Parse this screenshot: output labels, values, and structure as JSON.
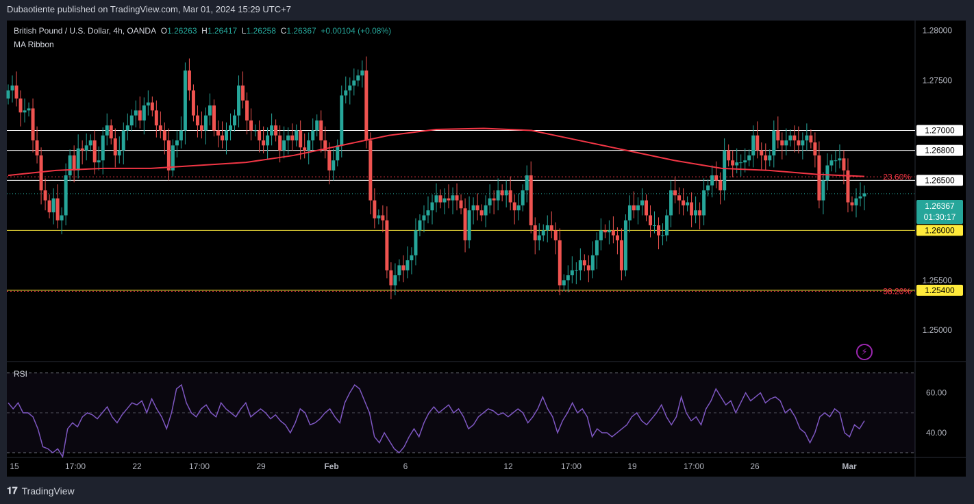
{
  "header": {
    "published": "Dubaotiente published on TradingView.com, Mar 01, 2024 15:29 UTC+7"
  },
  "legend": {
    "symbol": "British Pound / U.S. Dollar, 4h, OANDA",
    "o_label": "O",
    "o": "1.26263",
    "h_label": "H",
    "h": "1.26417",
    "l_label": "L",
    "l": "1.26258",
    "c_label": "C",
    "c": "1.26367",
    "change": "+0.00104 (+0.08%)",
    "indicator": "MA Ribbon"
  },
  "rsi_label": "RSI",
  "footer": {
    "brand": "TradingView"
  },
  "colors": {
    "up": "#26a69a",
    "down": "#ef5350",
    "ma": "#f23645",
    "rsi": "#7e57c2",
    "fib": "#f23645"
  },
  "chart_data": {
    "type": "candlestick",
    "price_axis": [
      "1.28000",
      "1.27500",
      "1.27000",
      "1.26500",
      "1.26000",
      "1.25500",
      "1.25000"
    ],
    "price_range": [
      1.247,
      1.281
    ],
    "time_axis": [
      "15",
      "17:00",
      "22",
      "17:00",
      "29",
      "Feb",
      "6",
      "12",
      "17:00",
      "19",
      "17:00",
      "26",
      "Mar"
    ],
    "horizontal_levels": [
      {
        "price": 1.27,
        "label": "1.27000",
        "style": "white"
      },
      {
        "price": 1.268,
        "label": "1.26800",
        "style": "white"
      },
      {
        "price": 1.265,
        "label": "1.26500",
        "style": "white"
      },
      {
        "price": 1.26,
        "label": "1.26000",
        "style": "yellow"
      },
      {
        "price": 1.254,
        "label": "1.25400",
        "style": "yellow"
      }
    ],
    "fib_levels": [
      {
        "price": 1.26535,
        "label": "23.60%"
      },
      {
        "price": 1.2539,
        "label": "38.20%"
      }
    ],
    "current_price": {
      "value": "1.26367",
      "countdown": "01:30:17"
    },
    "closes": [
      1.274,
      1.2745,
      1.2732,
      1.2718,
      1.272,
      1.2722,
      1.269,
      1.2675,
      1.264,
      1.263,
      1.2618,
      1.2632,
      1.261,
      1.2615,
      1.2655,
      1.2675,
      1.266,
      1.2682,
      1.268,
      1.2685,
      1.269,
      1.2668,
      1.267,
      1.2695,
      1.2705,
      1.2692,
      1.2675,
      1.268,
      1.27,
      1.2705,
      1.2715,
      1.272,
      1.271,
      1.2725,
      1.2728,
      1.272,
      1.2705,
      1.27,
      1.269,
      1.266,
      1.2685,
      1.269,
      1.27,
      1.276,
      1.274,
      1.2715,
      1.2705,
      1.27,
      1.2715,
      1.2725,
      1.27,
      1.2695,
      1.269,
      1.27,
      1.2705,
      1.2715,
      1.2745,
      1.273,
      1.271,
      1.27,
      1.27,
      1.269,
      1.2685,
      1.2695,
      1.2705,
      1.2695,
      1.268,
      1.269,
      1.2695,
      1.269,
      1.27,
      1.2683,
      1.268,
      1.269,
      1.27,
      1.271,
      1.269,
      1.268,
      1.266,
      1.267,
      1.2685,
      1.2735,
      1.274,
      1.2745,
      1.275,
      1.2755,
      1.276,
      1.269,
      1.263,
      1.2612,
      1.2615,
      1.261,
      1.256,
      1.2545,
      1.2555,
      1.2565,
      1.256,
      1.257,
      1.2575,
      1.26,
      1.261,
      1.2615,
      1.262,
      1.2628,
      1.2635,
      1.2628,
      1.2632,
      1.263,
      1.2635,
      1.263,
      1.2622,
      1.259,
      1.262,
      1.2625,
      1.262,
      1.2615,
      1.2625,
      1.2632,
      1.263,
      1.264,
      1.2635,
      1.264,
      1.2628,
      1.262,
      1.2625,
      1.264,
      1.2655,
      1.2605,
      1.259,
      1.2595,
      1.26,
      1.2605,
      1.26,
      1.259,
      1.2545,
      1.255,
      1.2555,
      1.256,
      1.256,
      1.257,
      1.2565,
      1.256,
      1.2575,
      1.259,
      1.26,
      1.2598,
      1.26,
      1.2595,
      1.259,
      1.256,
      1.261,
      1.2625,
      1.262,
      1.2625,
      1.263,
      1.2615,
      1.2605,
      1.2605,
      1.2595,
      1.2595,
      1.2615,
      1.264,
      1.2635,
      1.263,
      1.2625,
      1.2628,
      1.2615,
      1.262,
      1.2615,
      1.264,
      1.2645,
      1.2655,
      1.265,
      1.264,
      1.268,
      1.267,
      1.2665,
      1.2668,
      1.2668,
      1.267,
      1.2675,
      1.2695,
      1.268,
      1.2675,
      1.267,
      1.2675,
      1.27,
      1.269,
      1.2685,
      1.269,
      1.2695,
      1.269,
      1.2685,
      1.269,
      1.2695,
      1.2688,
      1.2675,
      1.263,
      1.265,
      1.2665,
      1.267,
      1.267,
      1.2672,
      1.266,
      1.2628,
      1.2625,
      1.2632,
      1.2634,
      1.2637
    ],
    "ma_line": [
      1.2655,
      1.266,
      1.2662,
      1.2662,
      1.2665,
      1.2668,
      1.2675,
      1.2685,
      1.2695,
      1.2701,
      1.2702,
      1.27,
      1.269,
      1.268,
      1.267,
      1.2662,
      1.266,
      1.2656,
      1.2654
    ],
    "rsi": {
      "ticks": [
        "60.00",
        "40.00"
      ],
      "range": [
        28,
        75
      ],
      "bands": [
        70,
        30
      ],
      "values": [
        55,
        52,
        55,
        50,
        50,
        48,
        42,
        33,
        32,
        30,
        32,
        28,
        42,
        45,
        43,
        48,
        50,
        49,
        47,
        50,
        53,
        48,
        45,
        49,
        52,
        55,
        54,
        56,
        50,
        57,
        52,
        48,
        42,
        50,
        62,
        64,
        55,
        50,
        48,
        52,
        54,
        50,
        48,
        55,
        52,
        50,
        48,
        52,
        55,
        48,
        50,
        52,
        50,
        47,
        49,
        46,
        44,
        40,
        45,
        52,
        50,
        44,
        45,
        47,
        50,
        52,
        48,
        45,
        55,
        60,
        64,
        62,
        56,
        50,
        38,
        35,
        40,
        36,
        32,
        30,
        33,
        38,
        42,
        38,
        45,
        50,
        53,
        50,
        52,
        54,
        50,
        52,
        48,
        42,
        44,
        48,
        50,
        52,
        51,
        49,
        50,
        48,
        50,
        52,
        50,
        45,
        48,
        52,
        58,
        52,
        48,
        40,
        46,
        50,
        55,
        50,
        52,
        48,
        38,
        42,
        40,
        40,
        38,
        40,
        42,
        44,
        48,
        50,
        46,
        44,
        47,
        50,
        54,
        48,
        44,
        48,
        58,
        50,
        46,
        48,
        44,
        52,
        56,
        62,
        58,
        54,
        56,
        50,
        55,
        60,
        56,
        58,
        60,
        55,
        57,
        58,
        56,
        50,
        52,
        48,
        42,
        40,
        35,
        40,
        48,
        50,
        48,
        52,
        50,
        40,
        38,
        44,
        42,
        46
      ]
    }
  }
}
